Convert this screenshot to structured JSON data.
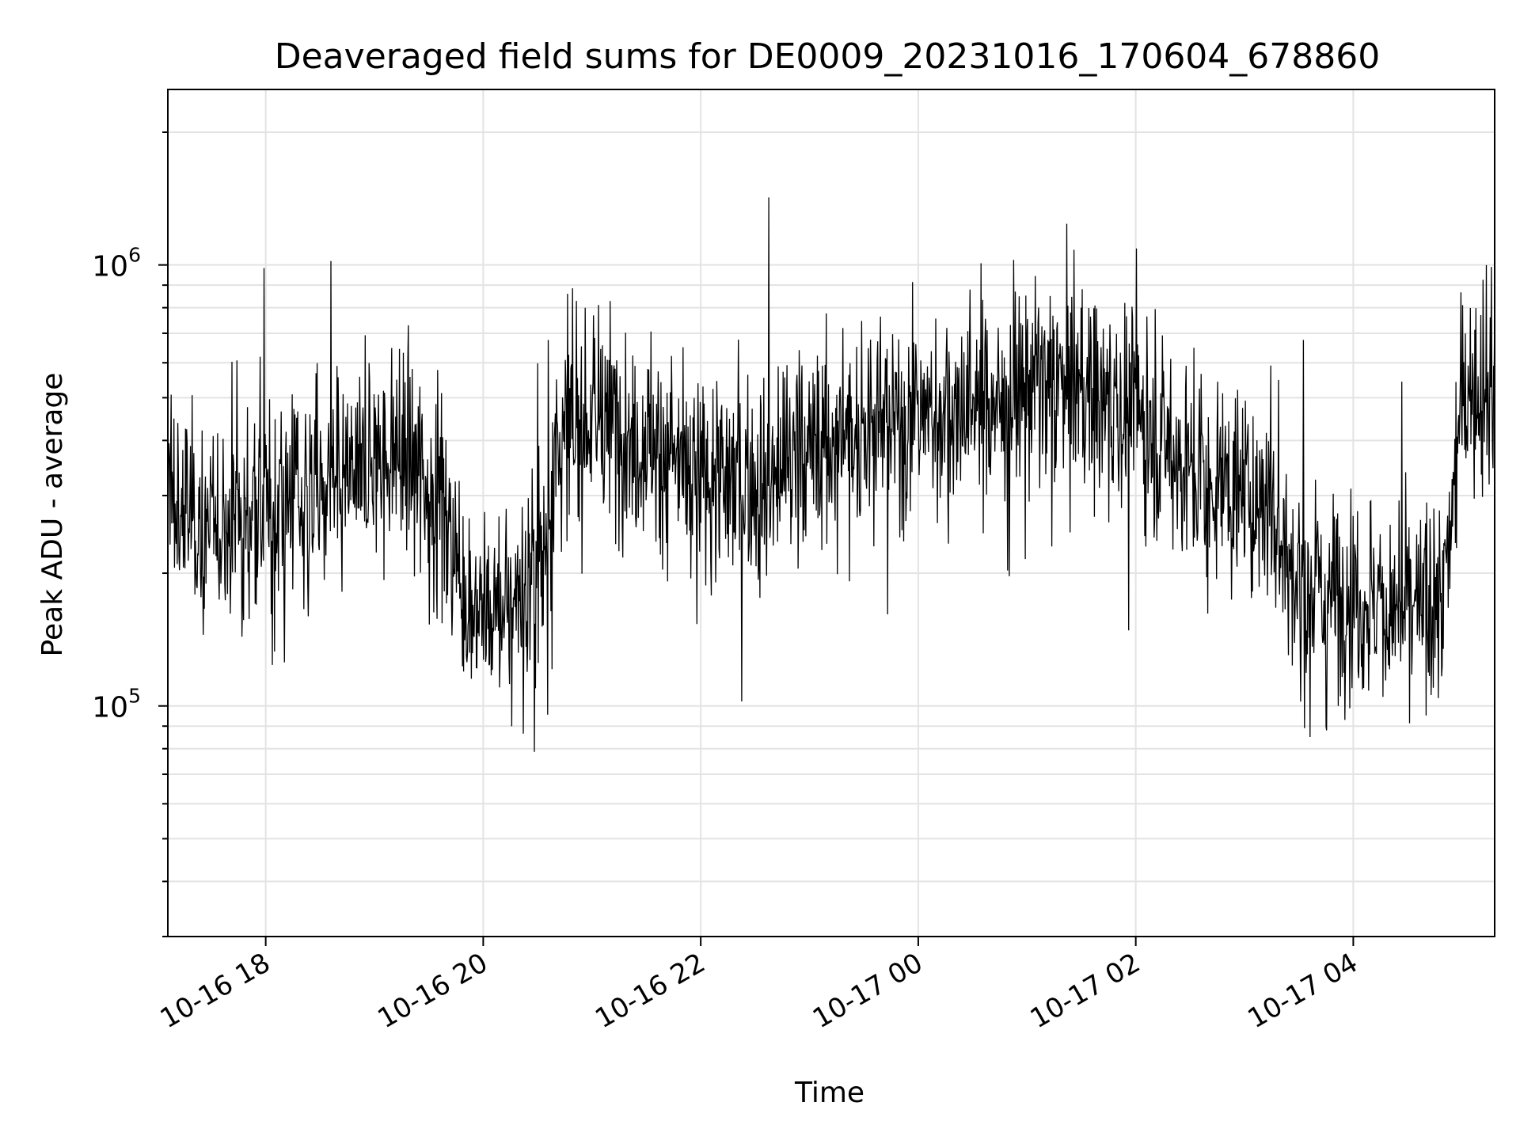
{
  "chart_data": {
    "type": "line",
    "title": "Deaveraged field sums for DE0009_20231016_170604_678860",
    "xlabel": "Time",
    "ylabel": "Peak ADU - average",
    "yscale": "log",
    "ylim": [
      30000,
      2500000
    ],
    "xlim": [
      "2023-10-16 17:06",
      "2023-10-17 05:18"
    ],
    "x_ticks": [
      "10-16 18",
      "10-16 20",
      "10-16 22",
      "10-17 00",
      "10-17 02",
      "10-17 04"
    ],
    "y_ticks": [
      {
        "base": "10",
        "exp": "5",
        "value": 100000
      },
      {
        "base": "10",
        "exp": "6",
        "value": 1000000
      }
    ],
    "grid": true,
    "line_color": "#000000",
    "series": [
      {
        "x": [
          "2023-10-16 17:06",
          "2023-10-16 17:30",
          "2023-10-16 18:00",
          "2023-10-16 18:30",
          "2023-10-16 19:00",
          "2023-10-16 19:15",
          "2023-10-16 19:30",
          "2023-10-16 19:50",
          "2023-10-16 20:00",
          "2023-10-16 20:20",
          "2023-10-16 20:35",
          "2023-10-16 20:40",
          "2023-10-16 21:00",
          "2023-10-16 21:30",
          "2023-10-16 22:00",
          "2023-10-16 22:30",
          "2023-10-16 23:00",
          "2023-10-16 23:30",
          "2023-10-17 00:00",
          "2023-10-17 00:30",
          "2023-10-17 01:00",
          "2023-10-17 01:30",
          "2023-10-17 02:00",
          "2023-10-17 02:30",
          "2023-10-17 03:00",
          "2023-10-17 03:15",
          "2023-10-17 03:30",
          "2023-10-17 04:00",
          "2023-10-17 04:30",
          "2023-10-17 04:50",
          "2023-10-17 05:00",
          "2023-10-17 05:18"
        ],
        "values": [
          300000,
          250000,
          280000,
          300000,
          350000,
          380000,
          330000,
          190000,
          150000,
          180000,
          220000,
          400000,
          450000,
          400000,
          320000,
          330000,
          380000,
          420000,
          450000,
          480000,
          530000,
          520000,
          450000,
          340000,
          300000,
          280000,
          180000,
          180000,
          160000,
          170000,
          530000,
          550000
        ]
      }
    ]
  }
}
